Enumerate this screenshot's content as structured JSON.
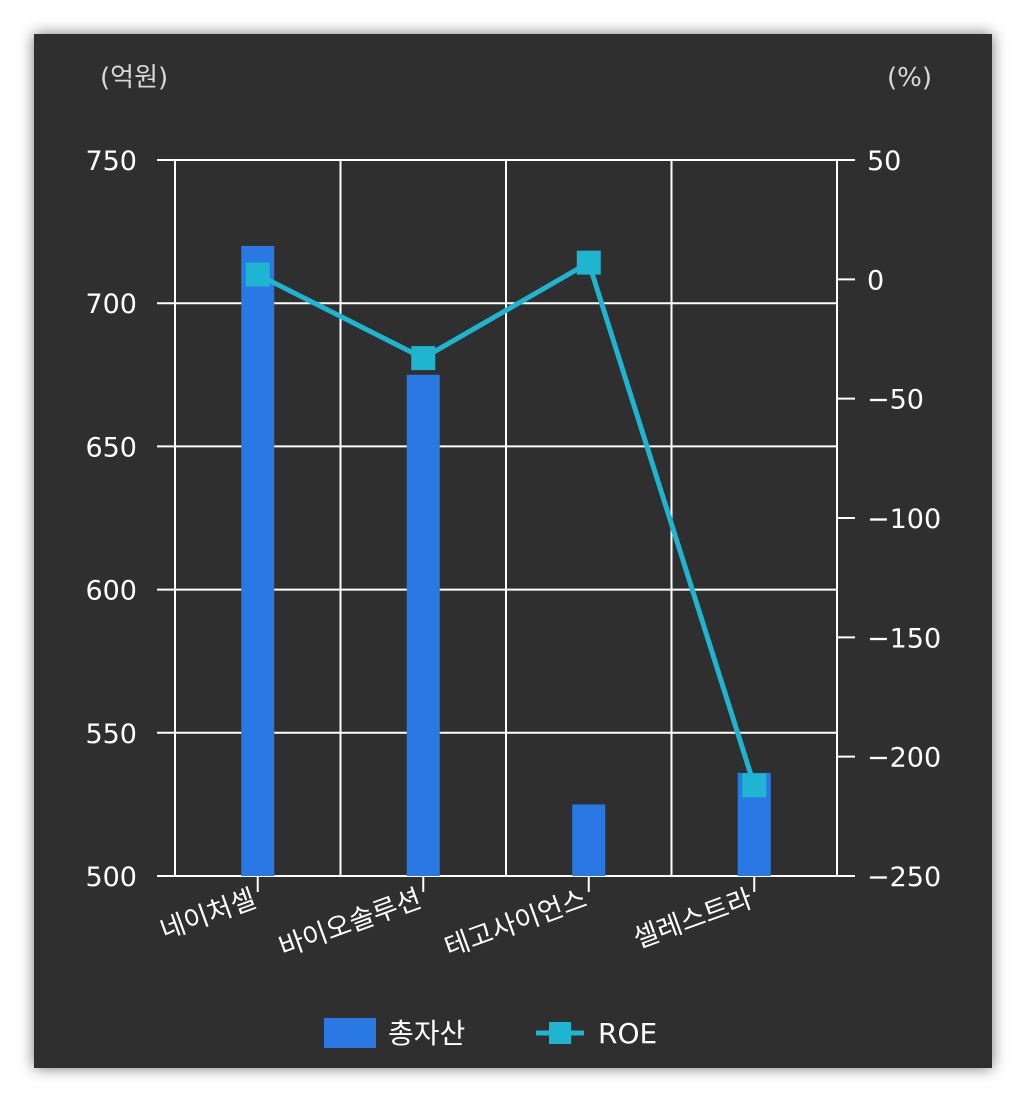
{
  "chart_data": {
    "type": "bar",
    "categories": [
      "네이처셀",
      "바이오솔루션",
      "테고사이언스",
      "셀레스트라"
    ],
    "series": [
      {
        "name": "총자산",
        "type": "bar",
        "axis": "left",
        "color": "#2a78e4",
        "values": [
          720,
          675,
          525,
          536
        ]
      },
      {
        "name": "ROE",
        "type": "line",
        "axis": "right",
        "color": "#1fb4cf",
        "values": [
          2,
          -33,
          7,
          -212
        ]
      }
    ],
    "y_left": {
      "unit": "(억원)",
      "ylim": [
        500,
        750
      ],
      "ticks": [
        750,
        700,
        650,
        600,
        550,
        500
      ]
    },
    "y_right": {
      "unit": "(%)",
      "ylim": [
        -250,
        50
      ],
      "ticks": [
        50,
        0,
        -50,
        -100,
        -150,
        -200,
        -250
      ]
    },
    "grid": true,
    "legend_position": "bottom-center",
    "background": "#2f2f2f",
    "grid_color": "#ffffff"
  }
}
